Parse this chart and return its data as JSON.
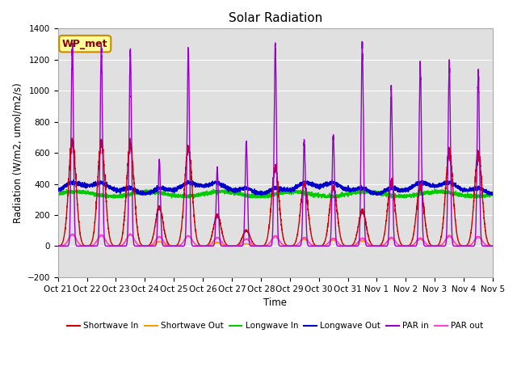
{
  "title": "Solar Radiation",
  "xlabel": "Time",
  "ylabel": "Radiation (W/m2, umol/m2/s)",
  "ylim": [
    -200,
    1400
  ],
  "yticks": [
    -200,
    0,
    200,
    400,
    600,
    800,
    1000,
    1200,
    1400
  ],
  "x_labels": [
    "Oct 21",
    "Oct 22",
    "Oct 23",
    "Oct 24",
    "Oct 25",
    "Oct 26",
    "Oct 27",
    "Oct 28",
    "Oct 29",
    "Oct 30",
    "Oct 31",
    "Nov 1",
    "Nov 2",
    "Nov 3",
    "Nov 4",
    "Nov 5"
  ],
  "series_colors": {
    "shortwave_in": "#cc0000",
    "shortwave_out": "#ff9900",
    "longwave_in": "#00cc00",
    "longwave_out": "#0000cc",
    "par_in": "#9900cc",
    "par_out": "#ff44cc"
  },
  "legend_label": "WP_met",
  "series_labels": [
    "Shortwave In",
    "Shortwave Out",
    "Longwave In",
    "Longwave Out",
    "PAR in",
    "PAR out"
  ],
  "bg_color": "#e0e0e0",
  "n_days": 15,
  "pts_per_day": 288,
  "peak_sw": [
    670,
    670,
    650,
    250,
    630,
    200,
    100,
    500,
    400,
    380,
    230,
    410,
    380,
    600,
    600
  ],
  "peak_par": [
    1300,
    1270,
    1260,
    550,
    1240,
    490,
    670,
    1280,
    670,
    720,
    1300,
    1000,
    1180,
    1170,
    1120
  ],
  "peak_sw_out": [
    75,
    70,
    75,
    28,
    65,
    25,
    15,
    60,
    45,
    40,
    35,
    50,
    45,
    65,
    60
  ],
  "peak_par_out": [
    75,
    70,
    75,
    60,
    65,
    55,
    45,
    65,
    55,
    50,
    50,
    55,
    50,
    65,
    60
  ]
}
